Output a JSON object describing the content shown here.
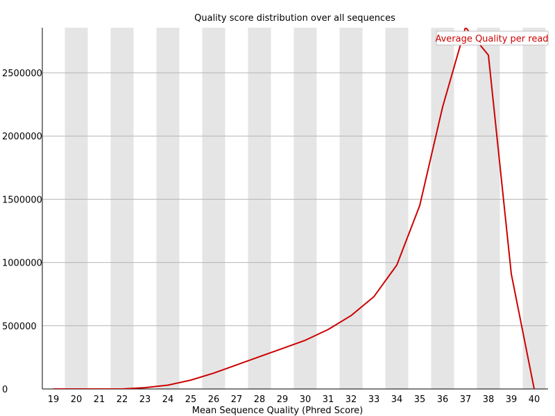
{
  "chart_data": {
    "type": "line",
    "title": "Quality score distribution over all sequences",
    "xlabel": "Mean Sequence Quality (Phred Score)",
    "ylabel": "",
    "x": [
      19,
      20,
      21,
      22,
      23,
      24,
      25,
      26,
      27,
      28,
      29,
      30,
      31,
      32,
      33,
      34,
      35,
      36,
      37,
      38,
      39,
      40
    ],
    "x_tick_labels": [
      "19",
      "20",
      "21",
      "22",
      "23",
      "24",
      "25",
      "26",
      "27",
      "28",
      "29",
      "30",
      "31",
      "32",
      "33",
      "34",
      "35",
      "36",
      "37",
      "38",
      "39",
      "40"
    ],
    "y_ticks": [
      0,
      500000,
      1000000,
      1500000,
      2000000,
      2500000
    ],
    "y_tick_labels": [
      "0",
      "500000",
      "1000000",
      "1500000",
      "2000000",
      "2500000"
    ],
    "ylim": [
      0,
      2860000
    ],
    "xlim": [
      19,
      40
    ],
    "grid": true,
    "alternating_column_shading": true,
    "legend_position": "top-right",
    "series": [
      {
        "name": "Average Quality per read",
        "color": "#cc0000",
        "values": [
          0,
          0,
          0,
          0,
          10000,
          30000,
          70000,
          125000,
          190000,
          255000,
          320000,
          385000,
          470000,
          580000,
          730000,
          980000,
          1450000,
          2230000,
          2860000,
          2640000,
          910000,
          0
        ]
      }
    ]
  }
}
